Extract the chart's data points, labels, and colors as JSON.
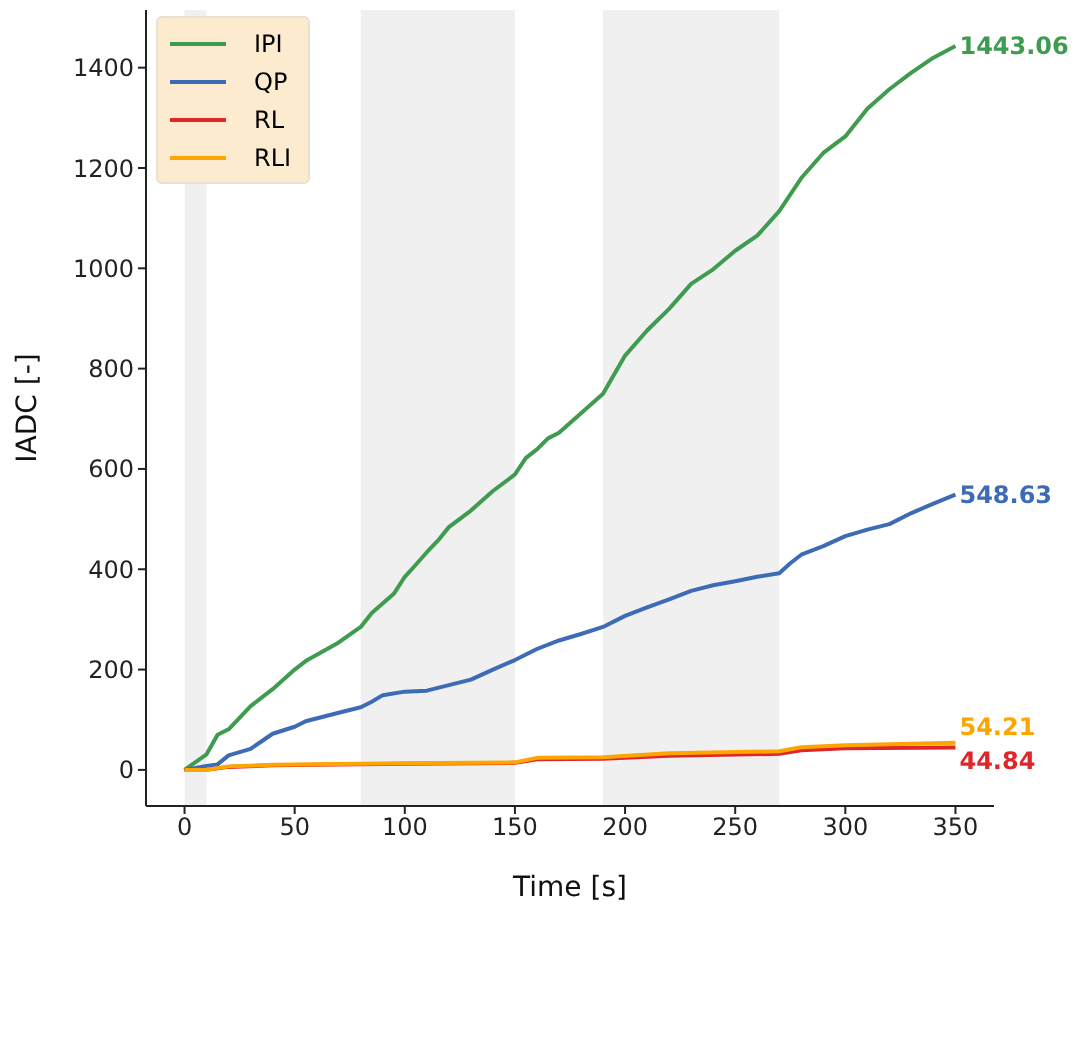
{
  "chart_data": {
    "type": "line",
    "xlabel": "Time [s]",
    "ylabel": "IADC [-]",
    "xlim": [
      -17.5,
      367.5
    ],
    "ylim": [
      -72,
      1515
    ],
    "xticks": [
      0,
      50,
      100,
      150,
      200,
      250,
      300,
      350
    ],
    "yticks": [
      0,
      200,
      400,
      600,
      800,
      1000,
      1200,
      1400
    ],
    "grid": false,
    "legend": "top left",
    "line_style": "solid",
    "marker": "none",
    "bands": [
      {
        "axis": "x",
        "from": 0,
        "to": 10,
        "color": "#f0f0f0"
      },
      {
        "axis": "x",
        "from": 80,
        "to": 150,
        "color": "#f0f0f0"
      },
      {
        "axis": "x",
        "from": 190,
        "to": 270,
        "color": "#f0f0f0"
      }
    ],
    "series": [
      {
        "name": "IPI",
        "color": "#3f9b4f",
        "x": [
          0,
          10,
          15,
          20,
          30,
          40,
          50,
          55,
          70,
          80,
          85,
          95,
          100,
          105,
          110,
          115,
          120,
          130,
          140,
          150,
          155,
          160,
          165,
          170,
          180,
          190,
          200,
          210,
          220,
          230,
          240,
          250,
          260,
          270,
          280,
          290,
          300,
          310,
          320,
          330,
          340,
          350
        ],
        "values": [
          0,
          31,
          70,
          81,
          127,
          161,
          200,
          217,
          254,
          285,
          313,
          351,
          385,
          409,
          434,
          457,
          484,
          517,
          556,
          589,
          622,
          639,
          661,
          672,
          711,
          750,
          826,
          876,
          919,
          969,
          998,
          1035,
          1065,
          1114,
          1180,
          1230,
          1263,
          1318,
          1357,
          1390,
          1420,
          1443.06
        ],
        "value_labels": [
          null,
          null,
          null,
          null,
          null,
          null,
          null,
          null,
          null,
          null,
          null,
          null,
          null,
          null,
          null,
          null,
          null,
          null,
          null,
          null,
          null,
          null,
          null,
          null,
          null,
          null,
          null,
          null,
          null,
          null,
          null,
          null,
          null,
          null,
          null,
          null,
          null,
          null,
          null,
          null,
          null,
          "1443.06"
        ]
      },
      {
        "name": "QP",
        "color": "#3d6bb5",
        "x": [
          0,
          10,
          15,
          20,
          30,
          40,
          50,
          55,
          70,
          80,
          85,
          90,
          100,
          110,
          120,
          130,
          140,
          150,
          160,
          170,
          180,
          190,
          200,
          210,
          220,
          230,
          240,
          250,
          260,
          270,
          275,
          280,
          290,
          300,
          310,
          320,
          330,
          340,
          350
        ],
        "values": [
          0,
          8,
          11,
          29,
          42,
          72,
          86,
          97,
          114,
          125,
          136,
          149,
          156,
          158,
          169,
          180,
          200,
          219,
          241,
          258,
          271,
          285,
          307,
          324,
          340,
          357,
          368,
          376,
          385,
          392,
          412,
          429,
          446,
          466,
          479,
          490,
          512,
          531,
          548.63
        ],
        "value_labels": [
          null,
          null,
          null,
          null,
          null,
          null,
          null,
          null,
          null,
          null,
          null,
          null,
          null,
          null,
          null,
          null,
          null,
          null,
          null,
          null,
          null,
          null,
          null,
          null,
          null,
          null,
          null,
          null,
          null,
          null,
          null,
          null,
          null,
          null,
          null,
          null,
          null,
          null,
          "548.63"
        ]
      },
      {
        "name": "RL",
        "color": "#e0262b",
        "x": [
          0,
          10,
          20,
          40,
          100,
          150,
          160,
          190,
          220,
          270,
          280,
          300,
          350
        ],
        "values": [
          0,
          0,
          6,
          9,
          12,
          14,
          21,
          22,
          28,
          32,
          39,
          43,
          44.84
        ],
        "value_labels": [
          null,
          null,
          null,
          null,
          null,
          null,
          null,
          null,
          null,
          null,
          null,
          null,
          "44.84"
        ]
      },
      {
        "name": "RLI",
        "color": "#ffa500",
        "x": [
          0,
          10,
          20,
          40,
          100,
          150,
          160,
          190,
          220,
          270,
          280,
          300,
          350
        ],
        "values": [
          0,
          0,
          7,
          10,
          13,
          15,
          24,
          25,
          33,
          37,
          45,
          49,
          54.21
        ],
        "value_labels": [
          null,
          null,
          null,
          null,
          null,
          null,
          null,
          null,
          null,
          null,
          null,
          null,
          "54.21"
        ]
      }
    ]
  }
}
